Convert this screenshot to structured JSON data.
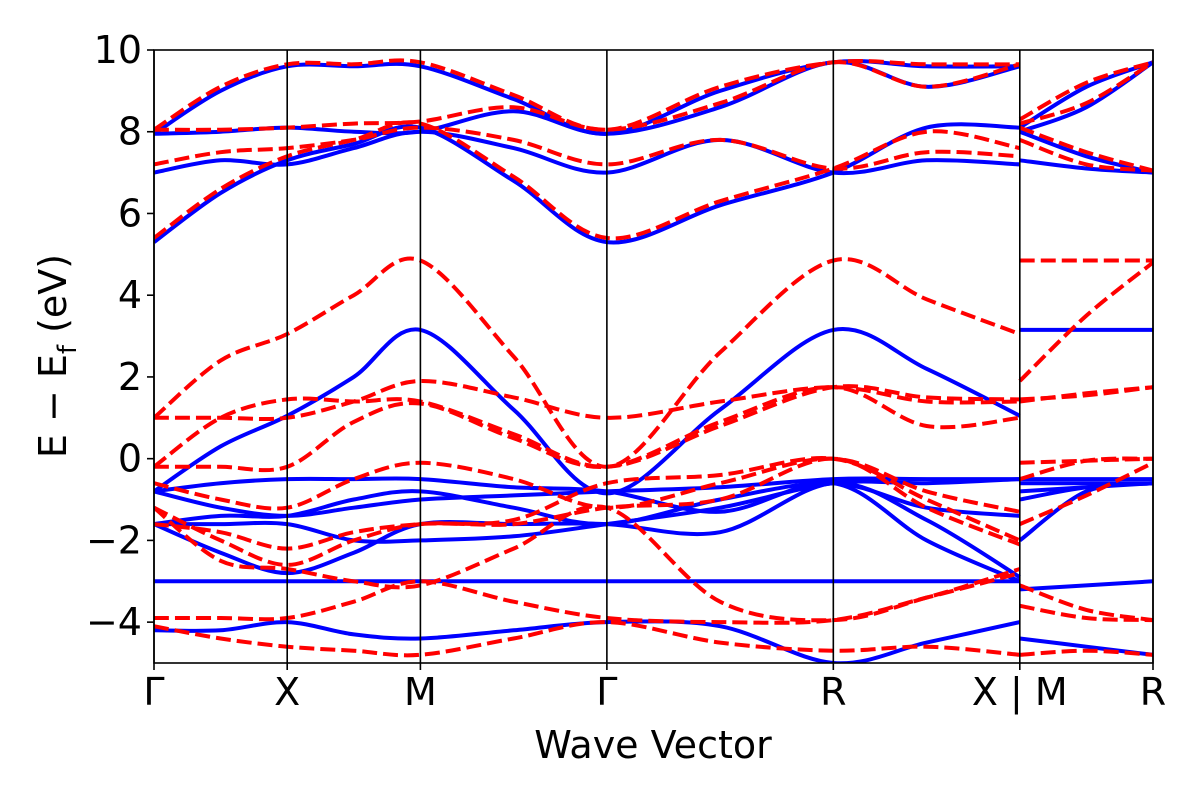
{
  "chart_data": {
    "type": "line",
    "xlabel": "Wave Vector",
    "ylabel_main": "E − E",
    "ylabel_sub": "f",
    "ylabel_unit": "(eV)",
    "ylim": [
      -5,
      10
    ],
    "xlim": [
      0,
      7.5
    ],
    "y_ticks": [
      -4,
      -2,
      0,
      2,
      4,
      6,
      8,
      10
    ],
    "y_tick_labels": [
      "−4",
      "−2",
      "0",
      "2",
      "4",
      "6",
      "8",
      "10"
    ],
    "k_points": [
      {
        "label": "Γ",
        "x": 0
      },
      {
        "label": "X",
        "x": 1
      },
      {
        "label": "M",
        "x": 2
      },
      {
        "label": "Γ",
        "x": 3.4
      },
      {
        "label": "R",
        "x": 5.1
      },
      {
        "label": "X | M",
        "x": 6.5
      },
      {
        "label": "R",
        "x": 7.5
      }
    ],
    "grid": false,
    "colors": {
      "solid": "#0000ff",
      "dashed": "#ff0000"
    },
    "x": [
      0,
      0.5,
      1,
      1.5,
      2,
      2.7,
      3.4,
      4.25,
      5.1,
      5.8,
      6.5,
      6.5,
      7.0,
      7.5
    ],
    "series": [
      {
        "style": "solid",
        "values": [
          -1.6,
          -1.6,
          -1.6,
          -2.0,
          -2.0,
          -1.9,
          -1.6,
          -1.2,
          -0.6,
          -0.6,
          -0.5,
          -0.5,
          -0.5,
          -0.5
        ]
      },
      {
        "style": "solid",
        "values": [
          -0.8,
          -1.2,
          -1.4,
          -1.2,
          -1.0,
          -0.9,
          -0.8,
          -0.7,
          -0.5,
          -0.5,
          -0.5,
          -0.6,
          -0.6,
          -0.6
        ]
      },
      {
        "style": "solid",
        "values": [
          -1.6,
          -1.4,
          -1.4,
          -1.0,
          -0.8,
          -1.2,
          -1.6,
          -1.0,
          -0.6,
          -1.2,
          -1.4,
          -0.8,
          -0.7,
          -0.6
        ]
      },
      {
        "style": "solid",
        "values": [
          -0.8,
          0.3,
          1.05,
          2.0,
          3.15,
          1.2,
          -0.85,
          1.2,
          3.15,
          2.2,
          1.05,
          3.15,
          3.15,
          3.15
        ]
      },
      {
        "style": "solid",
        "values": [
          -0.8,
          -0.6,
          -0.5,
          -0.5,
          -0.5,
          -0.7,
          -0.8,
          -1.3,
          -0.6,
          -2.0,
          -3.0,
          -2.0,
          -0.8,
          -0.6
        ]
      },
      {
        "style": "solid",
        "values": [
          -1.6,
          -2.3,
          -2.8,
          -2.3,
          -1.6,
          -1.6,
          -1.6,
          -1.8,
          -0.6,
          -1.5,
          -2.9,
          -1.0,
          -0.7,
          -0.6
        ]
      },
      {
        "style": "solid",
        "values": [
          -3.0,
          -3.0,
          -3.0,
          -3.0,
          -3.0,
          -3.0,
          -3.0,
          -3.0,
          -3.0,
          -3.0,
          -3.0,
          -3.2,
          -3.1,
          -3.0
        ]
      },
      {
        "style": "solid",
        "values": [
          -4.2,
          -4.2,
          -4.0,
          -4.3,
          -4.4,
          -4.2,
          -4.0,
          -4.1,
          -5.0,
          -4.5,
          -4.0,
          -4.4,
          -4.6,
          -4.8
        ]
      },
      {
        "style": "solid",
        "values": [
          5.3,
          6.5,
          7.3,
          7.7,
          8.1,
          6.8,
          5.3,
          6.2,
          7.0,
          8.1,
          8.1,
          8.0,
          7.4,
          7.0
        ]
      },
      {
        "style": "solid",
        "values": [
          7.0,
          7.3,
          7.2,
          7.6,
          8.0,
          7.6,
          7.0,
          7.8,
          7.0,
          7.3,
          7.2,
          7.3,
          7.1,
          7.0
        ]
      },
      {
        "style": "solid",
        "values": [
          7.95,
          8.0,
          8.1,
          8.0,
          8.0,
          8.5,
          7.95,
          8.6,
          9.7,
          9.1,
          9.6,
          8.1,
          9.1,
          9.7
        ]
      },
      {
        "style": "solid",
        "values": [
          7.95,
          9.0,
          9.6,
          9.6,
          9.6,
          8.8,
          7.95,
          9.0,
          9.7,
          9.6,
          9.6,
          8.0,
          8.6,
          9.7
        ]
      },
      {
        "style": "dashed",
        "values": [
          1.0,
          1.0,
          1.0,
          1.4,
          1.9,
          1.5,
          1.0,
          1.4,
          1.75,
          1.4,
          1.4,
          1.9,
          3.5,
          4.8
        ]
      },
      {
        "style": "dashed",
        "values": [
          -0.2,
          1.0,
          1.45,
          1.4,
          1.4,
          0.6,
          -0.2,
          0.8,
          1.75,
          1.5,
          1.45,
          1.4,
          1.6,
          1.75
        ]
      },
      {
        "style": "dashed",
        "values": [
          1.0,
          2.4,
          3.05,
          4.0,
          4.85,
          2.5,
          -0.2,
          2.6,
          4.85,
          3.9,
          3.05,
          4.85,
          4.85,
          4.85
        ]
      },
      {
        "style": "dashed",
        "values": [
          -0.2,
          -0.2,
          -0.2,
          0.9,
          1.35,
          0.5,
          -0.2,
          0.9,
          1.75,
          0.8,
          1.0,
          1.45,
          1.55,
          1.75
        ]
      },
      {
        "style": "dashed",
        "values": [
          -0.6,
          -1.0,
          -1.2,
          -0.5,
          -0.1,
          -0.5,
          -1.2,
          -0.6,
          0.0,
          -0.8,
          -1.3,
          -0.1,
          -0.05,
          0.0
        ]
      },
      {
        "style": "dashed",
        "values": [
          -1.2,
          -2.0,
          -2.6,
          -2.0,
          -1.6,
          -1.6,
          -1.2,
          -1.0,
          0.0,
          -1.2,
          -2.1,
          -0.5,
          -0.05,
          0.0
        ]
      },
      {
        "style": "dashed",
        "values": [
          -1.6,
          -1.8,
          -2.2,
          -1.8,
          -1.6,
          -1.5,
          -0.6,
          -0.4,
          0.0,
          -1.0,
          -2.0,
          -1.6,
          -0.9,
          -0.1
        ]
      },
      {
        "style": "dashed",
        "values": [
          -1.2,
          -2.5,
          -2.7,
          -3.0,
          -3.1,
          -2.2,
          -1.2,
          -3.5,
          -3.95,
          -3.4,
          -2.7,
          -3.1,
          -3.7,
          -3.95
        ]
      },
      {
        "style": "dashed",
        "values": [
          -3.9,
          -3.9,
          -3.9,
          -3.5,
          -3.0,
          -3.5,
          -3.9,
          -4.0,
          -3.95,
          -3.4,
          -2.8,
          -3.6,
          -3.9,
          -3.95
        ]
      },
      {
        "style": "dashed",
        "values": [
          -4.1,
          -4.4,
          -4.6,
          -4.7,
          -4.8,
          -4.4,
          -4.0,
          -4.5,
          -4.7,
          -4.6,
          -4.8,
          -4.8,
          -4.7,
          -4.8
        ]
      },
      {
        "style": "dashed",
        "values": [
          5.4,
          6.6,
          7.4,
          7.8,
          8.2,
          6.9,
          5.4,
          6.3,
          7.1,
          8.0,
          7.6,
          8.1,
          7.5,
          7.05
        ]
      },
      {
        "style": "dashed",
        "values": [
          7.2,
          7.5,
          7.6,
          7.8,
          8.1,
          7.8,
          7.2,
          7.8,
          7.1,
          7.5,
          7.4,
          7.8,
          7.2,
          7.05
        ]
      },
      {
        "style": "dashed",
        "values": [
          8.05,
          8.05,
          8.1,
          8.2,
          8.25,
          8.6,
          8.05,
          8.7,
          9.7,
          9.1,
          9.65,
          8.3,
          9.2,
          9.7
        ]
      },
      {
        "style": "dashed",
        "values": [
          8.05,
          9.1,
          9.65,
          9.65,
          9.7,
          8.9,
          8.05,
          9.1,
          9.7,
          9.65,
          9.65,
          8.2,
          8.7,
          9.7
        ]
      }
    ]
  }
}
